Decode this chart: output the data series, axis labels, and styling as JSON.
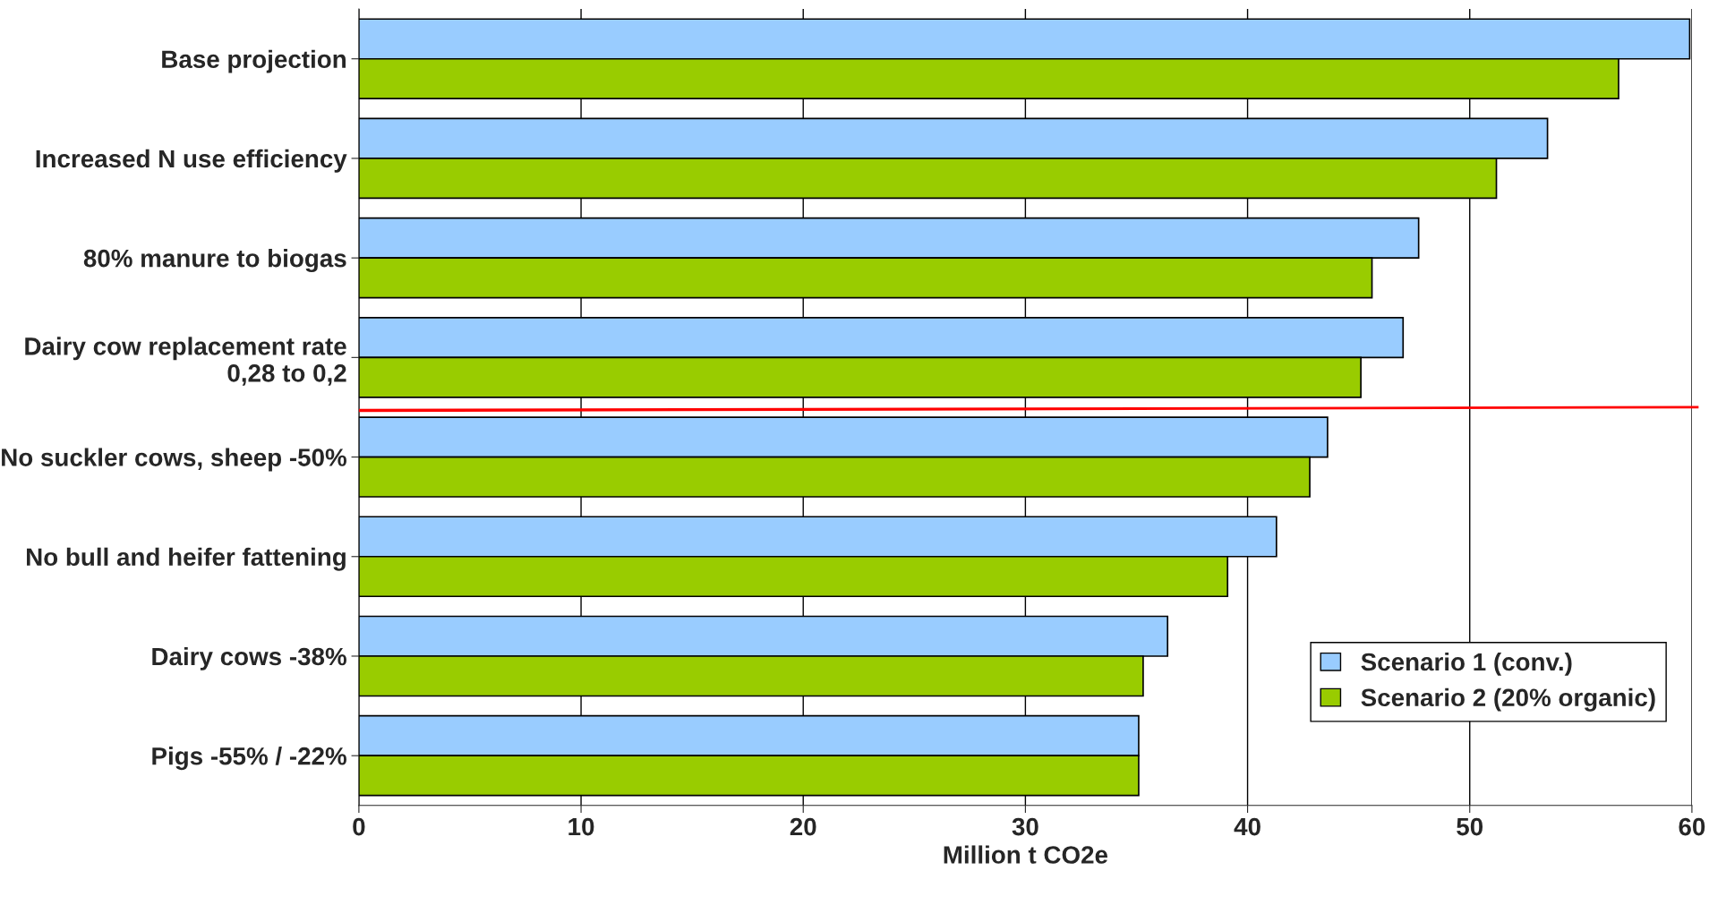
{
  "chart_data": {
    "type": "bar",
    "orientation": "horizontal",
    "xlabel": "Million t CO2e",
    "categories": [
      "Base projection",
      "Increased N use efficiency",
      "80% manure to biogas",
      "Dairy cow replacement rate\n0,28 to 0,2",
      "No suckler cows, sheep -50%",
      "No bull and heifer fattening",
      "Dairy cows -38%",
      "Pigs -55% / -22%"
    ],
    "series": [
      {
        "name": "Scenario 1 (conv.)",
        "color": "#99ccff",
        "values": [
          59.9,
          53.5,
          47.7,
          47.0,
          43.6,
          41.3,
          36.4,
          35.1
        ]
      },
      {
        "name": "Scenario 2 (20% organic)",
        "color": "#99cc00",
        "values": [
          56.7,
          51.2,
          45.6,
          45.1,
          42.8,
          39.1,
          35.3,
          35.1
        ]
      }
    ],
    "xlim": [
      0,
      60
    ],
    "xticks": [
      0,
      10,
      20,
      30,
      40,
      50,
      60
    ],
    "grid": "x",
    "legend": "bottom right"
  }
}
